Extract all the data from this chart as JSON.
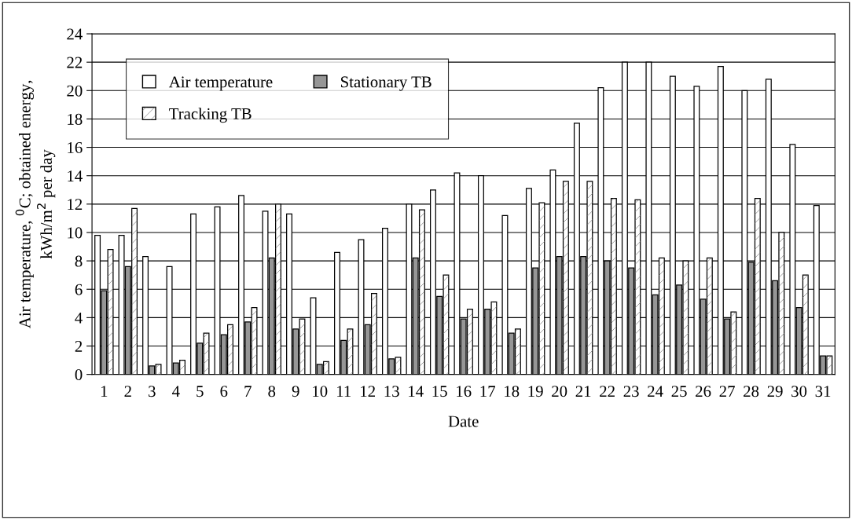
{
  "chart_data": {
    "type": "bar",
    "xlabel": "Date",
    "ylabel": "Air temperature, $^{0}$C; obtained energy,\nkWh/m$^{2}$ per day",
    "categories": [
      "1",
      "2",
      "3",
      "4",
      "5",
      "6",
      "7",
      "8",
      "9",
      "10",
      "11",
      "12",
      "13",
      "14",
      "15",
      "16",
      "17",
      "18",
      "19",
      "20",
      "21",
      "22",
      "23",
      "24",
      "25",
      "26",
      "27",
      "28",
      "29",
      "30",
      "31"
    ],
    "series": [
      {
        "name": "Air temperature",
        "color": "#ffffff",
        "values": [
          9.8,
          9.8,
          8.3,
          7.6,
          11.3,
          11.8,
          12.6,
          11.5,
          11.3,
          5.4,
          8.6,
          9.5,
          10.3,
          12.0,
          13.0,
          14.2,
          14.0,
          11.2,
          13.1,
          14.4,
          17.7,
          20.2,
          22.0,
          22.0,
          21.0,
          20.3,
          21.7,
          20.0,
          20.8,
          16.2,
          11.9
        ]
      },
      {
        "name": "Stationary TB",
        "color": "#969696",
        "values": [
          5.9,
          7.6,
          0.6,
          0.8,
          2.2,
          2.8,
          3.7,
          8.2,
          3.2,
          0.7,
          2.4,
          3.5,
          1.1,
          8.2,
          5.5,
          3.9,
          4.6,
          2.9,
          7.5,
          8.3,
          8.3,
          8.0,
          7.5,
          5.6,
          6.3,
          5.3,
          3.9,
          7.9,
          6.6,
          4.7,
          1.3
        ]
      },
      {
        "name": "Tracking TB",
        "color": "#ffffff",
        "values": [
          8.8,
          11.7,
          0.7,
          1.0,
          2.9,
          3.5,
          4.7,
          12.0,
          3.9,
          0.9,
          3.2,
          5.7,
          1.2,
          11.6,
          7.0,
          4.6,
          5.1,
          3.2,
          12.1,
          13.6,
          13.6,
          12.4,
          12.3,
          8.2,
          8.0,
          8.2,
          4.4,
          12.4,
          10.0,
          7.0,
          1.3
        ]
      }
    ],
    "ylim": [
      0,
      24
    ],
    "yticks": [
      0,
      2,
      4,
      6,
      8,
      10,
      12,
      14,
      16,
      18,
      20,
      22,
      24
    ],
    "grid": "y",
    "legend": "top left"
  }
}
